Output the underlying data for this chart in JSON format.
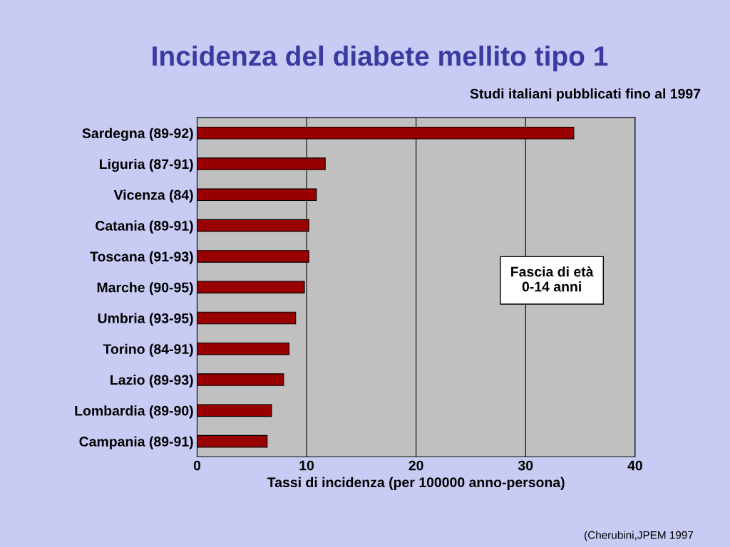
{
  "chart_data": {
    "type": "bar",
    "orientation": "horizontal",
    "title": "Incidenza del diabete mellito tipo 1",
    "subtitle": "Studi italiani pubblicati fino al 1997",
    "xlabel": "Tassi di incidenza (per 100000 anno-persona)",
    "categories": [
      "Sardegna (89-92)",
      "Liguria (87-91)",
      "Vicenza (84)",
      "Catania (89-91)",
      "Toscana (91-93)",
      "Marche (90-95)",
      "Umbria (93-95)",
      "Torino (84-91)",
      "Lazio (89-93)",
      "Lombardia (89-90)",
      "Campania (89-91)"
    ],
    "values": [
      34.4,
      11.7,
      10.9,
      10.2,
      10.2,
      9.8,
      9.0,
      8.4,
      7.9,
      6.8,
      6.4
    ],
    "color": "#990000",
    "xlim": [
      0,
      40
    ],
    "xticks": [
      0,
      10,
      20,
      30,
      40
    ],
    "grid": "x",
    "annotations": [
      "Fascia di età\n0-14 anni",
      "(Cherubini,JPEM 1997"
    ]
  }
}
